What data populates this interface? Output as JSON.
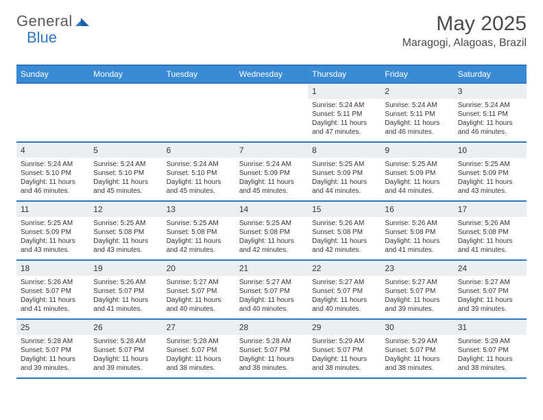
{
  "logo": {
    "text_a": "General",
    "text_b": "Blue"
  },
  "title": "May 2025",
  "location": "Maragogi, Alagoas, Brazil",
  "day_headers": [
    "Sunday",
    "Monday",
    "Tuesday",
    "Wednesday",
    "Thursday",
    "Friday",
    "Saturday"
  ],
  "colors": {
    "header_bg": "#3b8bd4",
    "accent": "#2f78c4",
    "daynum_bg": "#eceff1",
    "text": "#333333",
    "logo_gray": "#5a5a5a"
  },
  "weeks": [
    [
      {
        "n": "",
        "sunrise": "",
        "sunset": "",
        "daylight": ""
      },
      {
        "n": "",
        "sunrise": "",
        "sunset": "",
        "daylight": ""
      },
      {
        "n": "",
        "sunrise": "",
        "sunset": "",
        "daylight": ""
      },
      {
        "n": "",
        "sunrise": "",
        "sunset": "",
        "daylight": ""
      },
      {
        "n": "1",
        "sunrise": "Sunrise: 5:24 AM",
        "sunset": "Sunset: 5:11 PM",
        "daylight": "Daylight: 11 hours and 47 minutes."
      },
      {
        "n": "2",
        "sunrise": "Sunrise: 5:24 AM",
        "sunset": "Sunset: 5:11 PM",
        "daylight": "Daylight: 11 hours and 46 minutes."
      },
      {
        "n": "3",
        "sunrise": "Sunrise: 5:24 AM",
        "sunset": "Sunset: 5:11 PM",
        "daylight": "Daylight: 11 hours and 46 minutes."
      }
    ],
    [
      {
        "n": "4",
        "sunrise": "Sunrise: 5:24 AM",
        "sunset": "Sunset: 5:10 PM",
        "daylight": "Daylight: 11 hours and 46 minutes."
      },
      {
        "n": "5",
        "sunrise": "Sunrise: 5:24 AM",
        "sunset": "Sunset: 5:10 PM",
        "daylight": "Daylight: 11 hours and 45 minutes."
      },
      {
        "n": "6",
        "sunrise": "Sunrise: 5:24 AM",
        "sunset": "Sunset: 5:10 PM",
        "daylight": "Daylight: 11 hours and 45 minutes."
      },
      {
        "n": "7",
        "sunrise": "Sunrise: 5:24 AM",
        "sunset": "Sunset: 5:09 PM",
        "daylight": "Daylight: 11 hours and 45 minutes."
      },
      {
        "n": "8",
        "sunrise": "Sunrise: 5:25 AM",
        "sunset": "Sunset: 5:09 PM",
        "daylight": "Daylight: 11 hours and 44 minutes."
      },
      {
        "n": "9",
        "sunrise": "Sunrise: 5:25 AM",
        "sunset": "Sunset: 5:09 PM",
        "daylight": "Daylight: 11 hours and 44 minutes."
      },
      {
        "n": "10",
        "sunrise": "Sunrise: 5:25 AM",
        "sunset": "Sunset: 5:09 PM",
        "daylight": "Daylight: 11 hours and 43 minutes."
      }
    ],
    [
      {
        "n": "11",
        "sunrise": "Sunrise: 5:25 AM",
        "sunset": "Sunset: 5:09 PM",
        "daylight": "Daylight: 11 hours and 43 minutes."
      },
      {
        "n": "12",
        "sunrise": "Sunrise: 5:25 AM",
        "sunset": "Sunset: 5:08 PM",
        "daylight": "Daylight: 11 hours and 43 minutes."
      },
      {
        "n": "13",
        "sunrise": "Sunrise: 5:25 AM",
        "sunset": "Sunset: 5:08 PM",
        "daylight": "Daylight: 11 hours and 42 minutes."
      },
      {
        "n": "14",
        "sunrise": "Sunrise: 5:25 AM",
        "sunset": "Sunset: 5:08 PM",
        "daylight": "Daylight: 11 hours and 42 minutes."
      },
      {
        "n": "15",
        "sunrise": "Sunrise: 5:26 AM",
        "sunset": "Sunset: 5:08 PM",
        "daylight": "Daylight: 11 hours and 42 minutes."
      },
      {
        "n": "16",
        "sunrise": "Sunrise: 5:26 AM",
        "sunset": "Sunset: 5:08 PM",
        "daylight": "Daylight: 11 hours and 41 minutes."
      },
      {
        "n": "17",
        "sunrise": "Sunrise: 5:26 AM",
        "sunset": "Sunset: 5:08 PM",
        "daylight": "Daylight: 11 hours and 41 minutes."
      }
    ],
    [
      {
        "n": "18",
        "sunrise": "Sunrise: 5:26 AM",
        "sunset": "Sunset: 5:07 PM",
        "daylight": "Daylight: 11 hours and 41 minutes."
      },
      {
        "n": "19",
        "sunrise": "Sunrise: 5:26 AM",
        "sunset": "Sunset: 5:07 PM",
        "daylight": "Daylight: 11 hours and 41 minutes."
      },
      {
        "n": "20",
        "sunrise": "Sunrise: 5:27 AM",
        "sunset": "Sunset: 5:07 PM",
        "daylight": "Daylight: 11 hours and 40 minutes."
      },
      {
        "n": "21",
        "sunrise": "Sunrise: 5:27 AM",
        "sunset": "Sunset: 5:07 PM",
        "daylight": "Daylight: 11 hours and 40 minutes."
      },
      {
        "n": "22",
        "sunrise": "Sunrise: 5:27 AM",
        "sunset": "Sunset: 5:07 PM",
        "daylight": "Daylight: 11 hours and 40 minutes."
      },
      {
        "n": "23",
        "sunrise": "Sunrise: 5:27 AM",
        "sunset": "Sunset: 5:07 PM",
        "daylight": "Daylight: 11 hours and 39 minutes."
      },
      {
        "n": "24",
        "sunrise": "Sunrise: 5:27 AM",
        "sunset": "Sunset: 5:07 PM",
        "daylight": "Daylight: 11 hours and 39 minutes."
      }
    ],
    [
      {
        "n": "25",
        "sunrise": "Sunrise: 5:28 AM",
        "sunset": "Sunset: 5:07 PM",
        "daylight": "Daylight: 11 hours and 39 minutes."
      },
      {
        "n": "26",
        "sunrise": "Sunrise: 5:28 AM",
        "sunset": "Sunset: 5:07 PM",
        "daylight": "Daylight: 11 hours and 39 minutes."
      },
      {
        "n": "27",
        "sunrise": "Sunrise: 5:28 AM",
        "sunset": "Sunset: 5:07 PM",
        "daylight": "Daylight: 11 hours and 38 minutes."
      },
      {
        "n": "28",
        "sunrise": "Sunrise: 5:28 AM",
        "sunset": "Sunset: 5:07 PM",
        "daylight": "Daylight: 11 hours and 38 minutes."
      },
      {
        "n": "29",
        "sunrise": "Sunrise: 5:29 AM",
        "sunset": "Sunset: 5:07 PM",
        "daylight": "Daylight: 11 hours and 38 minutes."
      },
      {
        "n": "30",
        "sunrise": "Sunrise: 5:29 AM",
        "sunset": "Sunset: 5:07 PM",
        "daylight": "Daylight: 11 hours and 38 minutes."
      },
      {
        "n": "31",
        "sunrise": "Sunrise: 5:29 AM",
        "sunset": "Sunset: 5:07 PM",
        "daylight": "Daylight: 11 hours and 38 minutes."
      }
    ]
  ]
}
